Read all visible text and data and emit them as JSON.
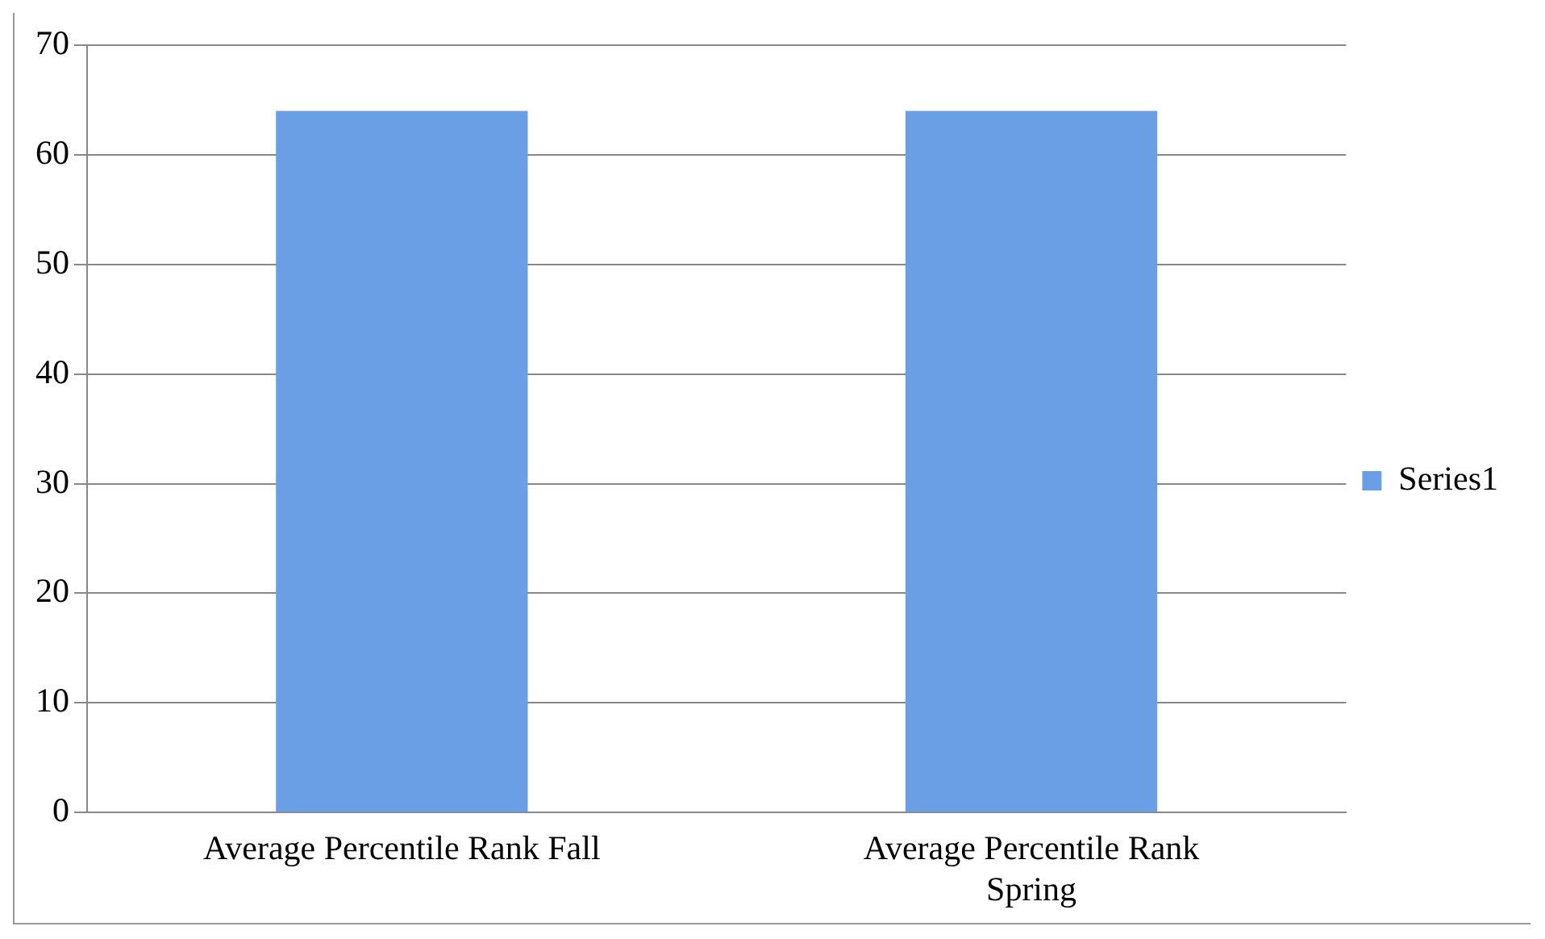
{
  "chart_data": {
    "type": "bar",
    "categories": [
      "Average Percentile Rank Fall",
      "Average Percentile Rank Spring"
    ],
    "series": [
      {
        "name": "Series1",
        "color": "#6a9fe6",
        "values": [
          64,
          64
        ]
      }
    ],
    "ylim": [
      0,
      70
    ],
    "yticks": [
      0,
      10,
      20,
      30,
      40,
      50,
      60,
      70
    ],
    "grid": "y",
    "legend": "right"
  }
}
